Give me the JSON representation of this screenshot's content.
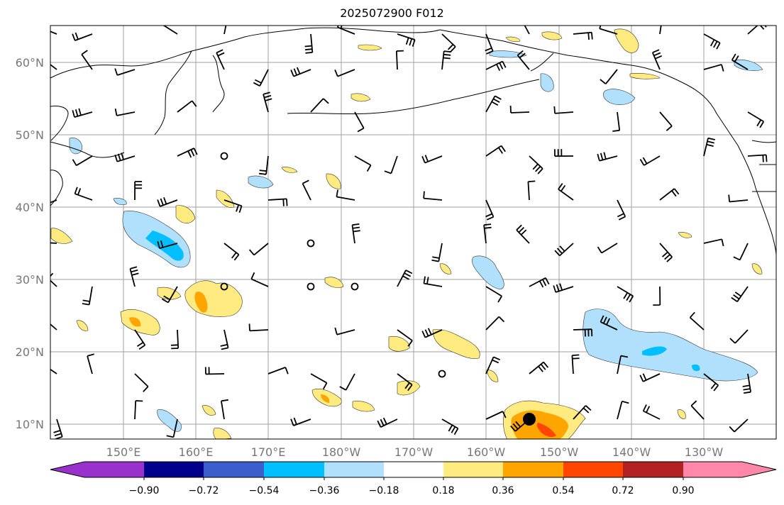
{
  "title": "2025072900 F012",
  "lat_labels": [
    "60°N",
    "50°N",
    "40°N",
    "30°N",
    "20°N",
    "10°N"
  ],
  "lon_labels": [
    "150°E",
    "160°E",
    "170°E",
    "180°W",
    "170°W",
    "160°W",
    "150°W",
    "140°W",
    "130°W"
  ],
  "colorbar": {
    "ticks": [
      "−0.90",
      "−0.72",
      "−0.54",
      "−0.36",
      "−0.18",
      "0.18",
      "0.36",
      "0.54",
      "0.72",
      "0.90"
    ],
    "colors": [
      "#9932cc",
      "#00008b",
      "#3a5fcd",
      "#00bfff",
      "#b0e0fb",
      "#ffffff",
      "#ffeb80",
      "#ffa500",
      "#ff4500",
      "#b22222",
      "#ff88aa"
    ]
  },
  "colors": {
    "light_blue": "#b0e0fb",
    "deep_sky_blue": "#00bfff",
    "light_yellow": "#ffeb80",
    "orange": "#ffa500",
    "orange_red": "#ff4500",
    "grid": "#a0a0a0"
  },
  "markers": {
    "storm_center": "filled black circle near 10°N 154°W"
  }
}
